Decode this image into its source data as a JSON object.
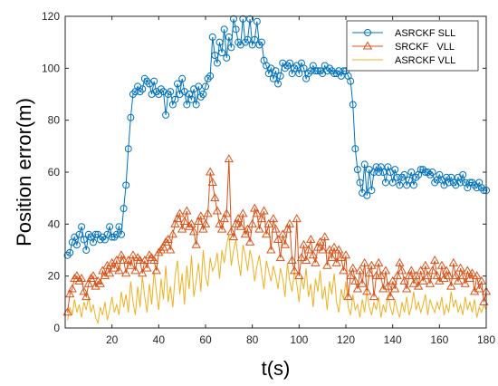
{
  "chart_data": {
    "type": "line",
    "xlabel": "t(s)",
    "ylabel": "Position error(m)",
    "xlim": [
      0,
      180
    ],
    "ylim": [
      0,
      120
    ],
    "xticks": [
      20,
      40,
      60,
      80,
      100,
      120,
      140,
      160,
      180
    ],
    "yticks": [
      0,
      20,
      40,
      60,
      80,
      100,
      120
    ],
    "grid": false,
    "legend_position": "top-right",
    "series": [
      {
        "name": "ASRCKF SLL",
        "color": "#0072BD",
        "marker": "circle",
        "x": [
          1,
          2,
          3,
          4,
          5,
          6,
          7,
          8,
          9,
          10,
          11,
          12,
          13,
          14,
          15,
          16,
          17,
          18,
          19,
          20,
          21,
          22,
          23,
          24,
          25,
          26,
          27,
          28,
          29,
          30,
          31,
          32,
          33,
          34,
          35,
          36,
          37,
          38,
          39,
          40,
          41,
          42,
          43,
          44,
          45,
          46,
          47,
          48,
          49,
          50,
          51,
          52,
          53,
          54,
          55,
          56,
          57,
          58,
          59,
          60,
          61,
          62,
          63,
          64,
          65,
          66,
          67,
          68,
          69,
          70,
          71,
          72,
          73,
          74,
          75,
          76,
          77,
          78,
          79,
          80,
          81,
          82,
          83,
          84,
          85,
          86,
          87,
          88,
          89,
          90,
          91,
          92,
          93,
          94,
          95,
          96,
          97,
          98,
          99,
          100,
          101,
          102,
          103,
          104,
          105,
          106,
          107,
          108,
          109,
          110,
          111,
          112,
          113,
          114,
          115,
          116,
          117,
          118,
          119,
          120,
          121,
          122,
          123,
          124,
          125,
          126,
          127,
          128,
          129,
          130,
          131,
          132,
          133,
          134,
          135,
          136,
          137,
          138,
          139,
          140,
          141,
          142,
          143,
          144,
          145,
          146,
          147,
          148,
          149,
          150,
          151,
          152,
          153,
          154,
          155,
          156,
          157,
          158,
          159,
          160,
          161,
          162,
          163,
          164,
          165,
          166,
          167,
          168,
          169,
          170,
          171,
          172,
          173,
          174,
          175,
          176,
          177,
          178,
          179,
          180
        ],
        "y": [
          28,
          29,
          33,
          35,
          32,
          36,
          39,
          34,
          30,
          36,
          35,
          33,
          36,
          36,
          34,
          35,
          34,
          36,
          39,
          35,
          35,
          36,
          39,
          36,
          46,
          55,
          69,
          81,
          90,
          91,
          93,
          91,
          92,
          96,
          95,
          94,
          90,
          95,
          91,
          90,
          92,
          91,
          82,
          90,
          91,
          86,
          88,
          94,
          90,
          96,
          91,
          86,
          90,
          88,
          92,
          86,
          93,
          89,
          90,
          93,
          96,
          97,
          112,
          105,
          102,
          110,
          106,
          115,
          104,
          112,
          108,
          119,
          115,
          110,
          109,
          119,
          110,
          111,
          119,
          109,
          111,
          118,
          109,
          110,
          103,
          101,
          98,
          100,
          96,
          99,
          94,
          97,
          102,
          100,
          101,
          102,
          98,
          100,
          101,
          98,
          102,
          100,
          96,
          98,
          99,
          101,
          99,
          99,
          99,
          98,
          101,
          99,
          100,
          99,
          98,
          98,
          99,
          97,
          99,
          99,
          97,
          95,
          86,
          69,
          61,
          56,
          52,
          63,
          51,
          61,
          53,
          60,
          62,
          60,
          62,
          60,
          56,
          62,
          60,
          56,
          61,
          58,
          55,
          58,
          59,
          55,
          57,
          60,
          55,
          58,
          59,
          61,
          61,
          60,
          60,
          59,
          60,
          56,
          57,
          59,
          57,
          55,
          58,
          56,
          58,
          56,
          55,
          58,
          56,
          59,
          56,
          54,
          56,
          56,
          55,
          54,
          56,
          54,
          53,
          53
        ]
      },
      {
        "name": "SRCKF   VLL",
        "color": "#D95319",
        "marker": "triangle",
        "x": [
          1,
          2,
          3,
          4,
          5,
          6,
          7,
          8,
          9,
          10,
          11,
          12,
          13,
          14,
          15,
          16,
          17,
          18,
          19,
          20,
          21,
          22,
          23,
          24,
          25,
          26,
          27,
          28,
          29,
          30,
          31,
          32,
          33,
          34,
          35,
          36,
          37,
          38,
          39,
          40,
          41,
          42,
          43,
          44,
          45,
          46,
          47,
          48,
          49,
          50,
          51,
          52,
          53,
          54,
          55,
          56,
          57,
          58,
          59,
          60,
          61,
          62,
          63,
          64,
          65,
          66,
          67,
          68,
          69,
          70,
          71,
          72,
          73,
          74,
          75,
          76,
          77,
          78,
          79,
          80,
          81,
          82,
          83,
          84,
          85,
          86,
          87,
          88,
          89,
          90,
          91,
          92,
          93,
          94,
          95,
          96,
          97,
          98,
          99,
          100,
          101,
          102,
          103,
          104,
          105,
          106,
          107,
          108,
          109,
          110,
          111,
          112,
          113,
          114,
          115,
          116,
          117,
          118,
          119,
          120,
          121,
          122,
          123,
          124,
          125,
          126,
          127,
          128,
          129,
          130,
          131,
          132,
          133,
          134,
          135,
          136,
          137,
          138,
          139,
          140,
          141,
          142,
          143,
          144,
          145,
          146,
          147,
          148,
          149,
          150,
          151,
          152,
          153,
          154,
          155,
          156,
          157,
          158,
          159,
          160,
          161,
          162,
          163,
          164,
          165,
          166,
          167,
          168,
          169,
          170,
          171,
          172,
          173,
          174,
          175,
          176,
          177,
          178,
          179,
          180
        ],
        "y": [
          6,
          13,
          15,
          19,
          20,
          18,
          19,
          14,
          12,
          17,
          19,
          20,
          16,
          18,
          17,
          22,
          20,
          24,
          21,
          25,
          23,
          26,
          22,
          28,
          26,
          21,
          26,
          24,
          28,
          22,
          27,
          26,
          21,
          26,
          23,
          28,
          27,
          26,
          22,
          29,
          30,
          31,
          33,
          34,
          30,
          36,
          40,
          42,
          44,
          38,
          41,
          45,
          39,
          40,
          37,
          32,
          41,
          43,
          38,
          40,
          44,
          60,
          56,
          50,
          45,
          40,
          38,
          42,
          44,
          65,
          37,
          35,
          40,
          42,
          39,
          44,
          36,
          38,
          33,
          40,
          46,
          44,
          38,
          42,
          45,
          36,
          40,
          30,
          42,
          38,
          34,
          27,
          36,
          32,
          38,
          40,
          26,
          22,
          42,
          20,
          27,
          32,
          26,
          30,
          34,
          28,
          25,
          31,
          33,
          30,
          35,
          24,
          30,
          27,
          31,
          25,
          30,
          27,
          22,
          28,
          12,
          20,
          23,
          18,
          15,
          22,
          17,
          25,
          14,
          21,
          24,
          12,
          20,
          25,
          20,
          15,
          22,
          16,
          12,
          18,
          15,
          20,
          25,
          22,
          18,
          15,
          20,
          22,
          17,
          20,
          16,
          22,
          18,
          24,
          20,
          17,
          22,
          26,
          20,
          18,
          24,
          19,
          22,
          20,
          16,
          25,
          20,
          18,
          23,
          20,
          17,
          22,
          19,
          21,
          14,
          20,
          15,
          18,
          10,
          14
        ]
      },
      {
        "name": "ASRCKF VLL",
        "color": "#EDB120",
        "marker": "none",
        "x": [
          1,
          2,
          3,
          4,
          5,
          6,
          7,
          8,
          9,
          10,
          11,
          12,
          13,
          14,
          15,
          16,
          17,
          18,
          19,
          20,
          21,
          22,
          23,
          24,
          25,
          26,
          27,
          28,
          29,
          30,
          31,
          32,
          33,
          34,
          35,
          36,
          37,
          38,
          39,
          40,
          41,
          42,
          43,
          44,
          45,
          46,
          47,
          48,
          49,
          50,
          51,
          52,
          53,
          54,
          55,
          56,
          57,
          58,
          59,
          60,
          61,
          62,
          63,
          64,
          65,
          66,
          67,
          68,
          69,
          70,
          71,
          72,
          73,
          74,
          75,
          76,
          77,
          78,
          79,
          80,
          81,
          82,
          83,
          84,
          85,
          86,
          87,
          88,
          89,
          90,
          91,
          92,
          93,
          94,
          95,
          96,
          97,
          98,
          99,
          100,
          101,
          102,
          103,
          104,
          105,
          106,
          107,
          108,
          109,
          110,
          111,
          112,
          113,
          114,
          115,
          116,
          117,
          118,
          119,
          120,
          121,
          122,
          123,
          124,
          125,
          126,
          127,
          128,
          129,
          130,
          131,
          132,
          133,
          134,
          135,
          136,
          137,
          138,
          139,
          140,
          141,
          142,
          143,
          144,
          145,
          146,
          147,
          148,
          149,
          150,
          151,
          152,
          153,
          154,
          155,
          156,
          157,
          158,
          159,
          160,
          161,
          162,
          163,
          164,
          165,
          166,
          167,
          168,
          169,
          170,
          171,
          172,
          173,
          174,
          175,
          176,
          177,
          178,
          179,
          180
        ],
        "y": [
          3,
          8,
          5,
          11,
          6,
          9,
          4,
          10,
          7,
          12,
          6,
          9,
          4,
          2,
          8,
          5,
          10,
          3,
          7,
          12,
          6,
          9,
          5,
          14,
          8,
          13,
          6,
          18,
          10,
          5,
          16,
          8,
          20,
          12,
          6,
          17,
          9,
          22,
          14,
          7,
          19,
          11,
          24,
          10,
          16,
          8,
          20,
          26,
          13,
          21,
          9,
          24,
          15,
          28,
          12,
          18,
          25,
          14,
          30,
          20,
          16,
          27,
          22,
          24,
          29,
          19,
          30,
          25,
          32,
          36,
          24,
          30,
          34,
          26,
          20,
          32,
          28,
          22,
          30,
          26,
          18,
          24,
          28,
          21,
          15,
          26,
          22,
          18,
          24,
          20,
          15,
          23,
          19,
          12,
          25,
          18,
          14,
          22,
          17,
          10,
          20,
          15,
          23,
          12,
          17,
          8,
          19,
          14,
          22,
          11,
          16,
          7,
          18,
          13,
          21,
          10,
          6,
          15,
          11,
          18,
          8,
          5,
          13,
          7,
          9,
          4,
          11,
          6,
          14,
          8,
          5,
          10,
          7,
          12,
          4,
          9,
          6,
          13,
          8,
          5,
          11,
          7,
          4,
          10,
          6,
          12,
          5,
          8,
          14,
          7,
          10,
          6,
          9,
          13,
          5,
          11,
          8,
          6,
          10,
          7,
          12,
          5,
          9,
          6,
          14,
          8,
          11,
          6,
          9,
          5,
          12,
          7,
          10,
          6,
          11,
          4,
          8,
          6,
          9,
          7
        ]
      }
    ]
  }
}
